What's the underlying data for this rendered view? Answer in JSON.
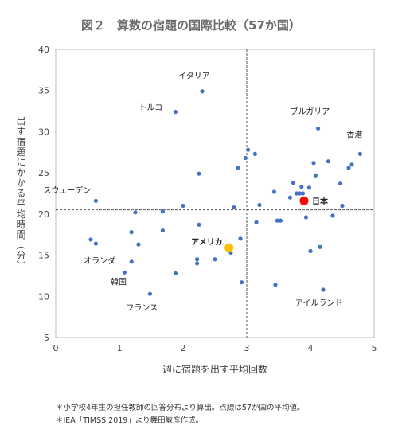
{
  "chart_data": {
    "type": "scatter",
    "title": "図２　算数の宿題の国際比較（57か国）",
    "xlabel": "週に宿題を出す平均回数",
    "ylabel": "出す宿題にかかる平均時間（分）",
    "xlim": [
      0,
      5
    ],
    "ylim": [
      5,
      40
    ],
    "xticks": [
      "0",
      "1",
      "2",
      "3",
      "4",
      "5"
    ],
    "yticks": [
      "5",
      "10",
      "15",
      "20",
      "25",
      "30",
      "35",
      "40"
    ],
    "mean_x": 3.0,
    "mean_y": 20.5,
    "grid": false,
    "point_color": "#4472c4",
    "points": [
      {
        "x": 0.55,
        "y": 16.9
      },
      {
        "x": 0.63,
        "y": 21.6,
        "label": "スウェーデン"
      },
      {
        "x": 0.63,
        "y": 16.4
      },
      {
        "x": 1.08,
        "y": 12.9
      },
      {
        "x": 1.19,
        "y": 14.2,
        "label": "オランダ"
      },
      {
        "x": 1.19,
        "y": 17.8
      },
      {
        "x": 1.25,
        "y": 20.2
      },
      {
        "x": 1.3,
        "y": 16.3
      },
      {
        "x": 1.48,
        "y": 10.3,
        "label": "フランス"
      },
      {
        "x": 1.68,
        "y": 20.3
      },
      {
        "x": 1.68,
        "y": 18.0
      },
      {
        "x": 1.88,
        "y": 32.4,
        "label": "トルコ"
      },
      {
        "x": 1.88,
        "y": 12.8
      },
      {
        "x": 2.0,
        "y": 21.0
      },
      {
        "x": 2.22,
        "y": 14.5
      },
      {
        "x": 2.22,
        "y": 14.0
      },
      {
        "x": 2.25,
        "y": 24.9
      },
      {
        "x": 2.25,
        "y": 18.7
      },
      {
        "x": 2.3,
        "y": 34.9,
        "label": "イタリア"
      },
      {
        "x": 2.5,
        "y": 14.5
      },
      {
        "x": 2.75,
        "y": 15.3
      },
      {
        "x": 2.8,
        "y": 20.8
      },
      {
        "x": 2.86,
        "y": 25.6
      },
      {
        "x": 2.9,
        "y": 17.0
      },
      {
        "x": 2.92,
        "y": 11.7
      },
      {
        "x": 2.98,
        "y": 26.8
      },
      {
        "x": 3.02,
        "y": 27.8
      },
      {
        "x": 3.13,
        "y": 27.3
      },
      {
        "x": 3.15,
        "y": 19.0
      },
      {
        "x": 3.2,
        "y": 21.1
      },
      {
        "x": 3.43,
        "y": 22.7
      },
      {
        "x": 3.45,
        "y": 11.4
      },
      {
        "x": 3.48,
        "y": 19.2
      },
      {
        "x": 3.53,
        "y": 19.2
      },
      {
        "x": 3.68,
        "y": 22.0
      },
      {
        "x": 3.73,
        "y": 23.8
      },
      {
        "x": 3.78,
        "y": 22.5
      },
      {
        "x": 3.83,
        "y": 22.5
      },
      {
        "x": 3.86,
        "y": 23.3
      },
      {
        "x": 3.88,
        "y": 22.5
      },
      {
        "x": 3.93,
        "y": 19.6
      },
      {
        "x": 3.98,
        "y": 23.2
      },
      {
        "x": 4.0,
        "y": 15.5
      },
      {
        "x": 4.05,
        "y": 26.2
      },
      {
        "x": 4.08,
        "y": 24.7
      },
      {
        "x": 4.12,
        "y": 30.4,
        "label": "ブルガリア"
      },
      {
        "x": 4.15,
        "y": 16.0
      },
      {
        "x": 4.2,
        "y": 10.8,
        "label": "アイルランド"
      },
      {
        "x": 4.28,
        "y": 26.4
      },
      {
        "x": 4.35,
        "y": 19.8
      },
      {
        "x": 4.47,
        "y": 23.7
      },
      {
        "x": 4.5,
        "y": 21.0
      },
      {
        "x": 4.6,
        "y": 25.6
      },
      {
        "x": 4.65,
        "y": 26.0
      },
      {
        "x": 4.78,
        "y": 27.3,
        "label": "香港"
      }
    ],
    "highlights": [
      {
        "x": 3.9,
        "y": 21.6,
        "label": "日本",
        "color": "#ff0000"
      },
      {
        "x": 2.72,
        "y": 15.9,
        "label": "アメリカ",
        "color": "#ffc000"
      }
    ],
    "unlabeled_korea": {
      "x": 1.3,
      "y": 11.8,
      "label": "韓国"
    }
  },
  "notes": [
    "＊小学校4年生の担任教師の回答分布より算出。点線は57か国の平均値。",
    "＊IEA「TIMSS 2019」より舞田敏彦作成。"
  ]
}
